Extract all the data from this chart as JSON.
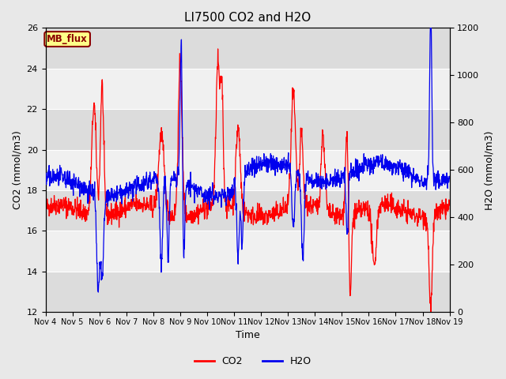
{
  "title": "LI7500 CO2 and H2O",
  "xlabel": "Time",
  "ylabel_left": "CO2 (mmol/m3)",
  "ylabel_right": "H2O (mmol/m3)",
  "annotation_text": "MB_flux",
  "annotation_color": "#8B0000",
  "annotation_bg": "#FFFF88",
  "co2_color": "#FF0000",
  "h2o_color": "#0000EE",
  "ylim_left": [
    12,
    26
  ],
  "ylim_right": [
    0,
    1200
  ],
  "yticks_left": [
    12,
    14,
    16,
    18,
    20,
    22,
    24,
    26
  ],
  "yticks_right": [
    0,
    200,
    400,
    600,
    800,
    1000,
    1200
  ],
  "bg_color": "#E8E8E8",
  "plot_bg": "#F0F0F0",
  "band_color": "#DCDCDC",
  "seed": 42
}
